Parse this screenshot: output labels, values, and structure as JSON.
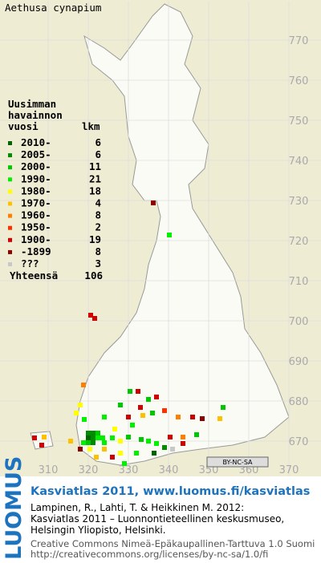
{
  "title": "Aethusa cynapium",
  "legend": {
    "heading": [
      "Uusimman",
      "havainnon",
      "vuosi"
    ],
    "count_heading": "lkm",
    "rows": [
      {
        "label": "2010-",
        "count": 6,
        "color": "#006400"
      },
      {
        "label": "2005-",
        "count": 6,
        "color": "#008c00"
      },
      {
        "label": "2000-",
        "count": 11,
        "color": "#00c800"
      },
      {
        "label": "1990-",
        "count": 21,
        "color": "#00f000"
      },
      {
        "label": "1980-",
        "count": 18,
        "color": "#ffff00"
      },
      {
        "label": "1970-",
        "count": 4,
        "color": "#ffc000"
      },
      {
        "label": "1960-",
        "count": 8,
        "color": "#ff8000"
      },
      {
        "label": "1950-",
        "count": 2,
        "color": "#ff3000"
      },
      {
        "label": "1900-",
        "count": 19,
        "color": "#d00000"
      },
      {
        "label": "-1899",
        "count": 8,
        "color": "#8c0000"
      },
      {
        "label": "???",
        "count": 3,
        "color": "#c8c8c8"
      }
    ],
    "total_label": "Yhteensä",
    "total": 106
  },
  "map": {
    "y_labels": [
      770,
      760,
      750,
      740,
      730,
      720,
      710,
      700,
      690,
      680,
      670
    ],
    "x_labels": [
      310,
      320,
      330,
      340,
      350,
      360,
      370
    ],
    "records": [
      [
        336.2,
        729.4,
        9
      ],
      [
        340.2,
        721.4,
        3
      ],
      [
        320.6,
        701.4,
        8
      ],
      [
        321.6,
        700.6,
        8
      ],
      [
        330.4,
        682.4,
        2
      ],
      [
        332.4,
        682.4,
        8
      ],
      [
        335,
        680.4,
        2
      ],
      [
        337,
        681,
        8
      ],
      [
        333,
        678.4,
        8
      ],
      [
        333.6,
        676.4,
        5
      ],
      [
        336,
        677,
        2
      ],
      [
        339,
        677.6,
        7
      ],
      [
        342.4,
        676,
        6
      ],
      [
        346,
        676,
        8
      ],
      [
        348.4,
        675.6,
        9
      ],
      [
        353.6,
        678.4,
        2
      ],
      [
        352.8,
        675.6,
        5
      ],
      [
        318.8,
        684,
        6
      ],
      [
        318,
        679,
        4
      ],
      [
        317,
        677,
        4
      ],
      [
        319,
        675.4,
        3
      ],
      [
        324,
        676,
        3
      ],
      [
        328,
        679,
        2
      ],
      [
        330,
        676,
        8
      ],
      [
        331,
        674,
        3
      ],
      [
        326.6,
        673,
        4
      ],
      [
        320,
        672,
        1
      ],
      [
        321.2,
        672,
        1
      ],
      [
        322.4,
        672,
        2
      ],
      [
        320,
        670.8,
        0
      ],
      [
        321.2,
        670.8,
        1
      ],
      [
        322.4,
        670.8,
        3
      ],
      [
        323.6,
        670.8,
        3
      ],
      [
        318.8,
        669.6,
        3
      ],
      [
        320,
        669.6,
        2
      ],
      [
        321.2,
        669.6,
        1
      ],
      [
        324,
        669.6,
        3
      ],
      [
        326,
        670.8,
        3
      ],
      [
        328,
        670,
        4
      ],
      [
        330,
        671,
        2
      ],
      [
        333.2,
        670.4,
        2
      ],
      [
        335,
        670,
        3
      ],
      [
        337,
        669.4,
        3
      ],
      [
        339,
        668.4,
        1
      ],
      [
        340.4,
        671,
        8
      ],
      [
        343.6,
        671,
        6
      ],
      [
        347,
        671.6,
        2
      ],
      [
        336.4,
        667,
        0
      ],
      [
        332,
        667,
        3
      ],
      [
        328,
        667,
        4
      ],
      [
        324,
        668,
        5
      ],
      [
        326,
        666,
        8
      ],
      [
        329,
        664.4,
        3
      ],
      [
        322,
        666,
        5
      ],
      [
        320.4,
        668,
        4
      ],
      [
        306.6,
        670.8,
        8
      ],
      [
        309,
        671,
        5
      ],
      [
        308.4,
        669,
        8
      ],
      [
        315.6,
        670,
        5
      ],
      [
        318,
        668,
        9
      ],
      [
        341,
        668,
        10
      ],
      [
        343.6,
        669.4,
        8
      ]
    ]
  },
  "license_badge": "BY-NC-SA",
  "footer": {
    "brand": "LUOMUS",
    "headline": "Kasviatlas 2011, www.luomus.fi/kasviatlas",
    "citation": [
      "Lampinen, R., Lahti, T. & Heikkinen M. 2012:",
      "Kasviatlas 2011 – Luonnontieteellinen keskusmuseo,",
      "Helsingin Yliopisto, Helsinki."
    ],
    "license": [
      "Creative Commons Nimeä-Epäkaupallinen-Tarttuva 1.0 Suomi",
      "http://creativecommons.org/licenses/by-nc-sa/1.0/fi"
    ]
  }
}
